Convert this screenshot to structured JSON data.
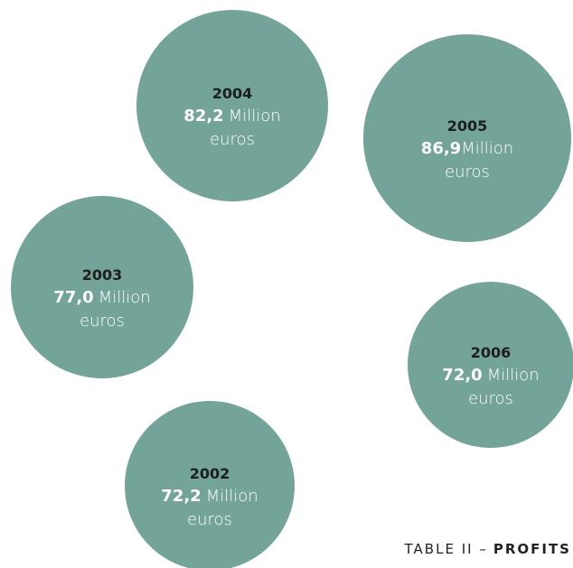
{
  "title": {
    "prefix": "TABLE II –",
    "main": "PROFITS"
  },
  "nodes": [
    {
      "year": "2004",
      "value": "82,2",
      "unit": "Million",
      "unit2": "euros"
    },
    {
      "year": "2005",
      "value": "86,9",
      "unit": "Million",
      "unit2": "euros"
    },
    {
      "year": "2003",
      "value": "77,0",
      "unit": "Million",
      "unit2": "euros"
    },
    {
      "year": "2006",
      "value": "72,0",
      "unit": "Million",
      "unit2": "euros"
    },
    {
      "year": "2002",
      "value": "72,2",
      "unit": "Million",
      "unit2": "euros"
    }
  ]
}
